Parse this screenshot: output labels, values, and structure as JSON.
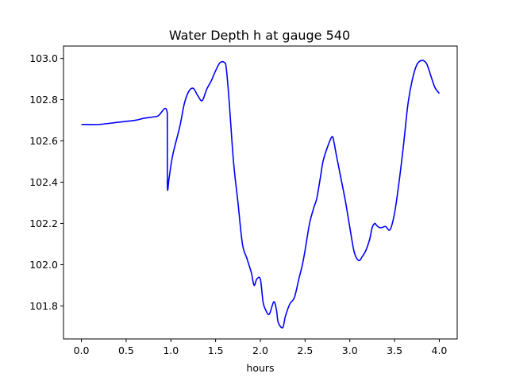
{
  "chart_data": {
    "type": "line",
    "title": "Water Depth h at gauge 540",
    "xlabel": "hours",
    "ylabel": "",
    "xlim": [
      -0.2,
      4.2
    ],
    "ylim": [
      101.64,
      103.06
    ],
    "xticks": [
      0.0,
      0.5,
      1.0,
      1.5,
      2.0,
      2.5,
      3.0,
      3.5,
      4.0
    ],
    "xtick_labels": [
      "0.0",
      "0.5",
      "1.0",
      "1.5",
      "2.0",
      "2.5",
      "3.0",
      "3.5",
      "4.0"
    ],
    "yticks": [
      101.8,
      102.0,
      102.2,
      102.4,
      102.6,
      102.8,
      103.0
    ],
    "ytick_labels": [
      "101.8",
      "102.0",
      "102.2",
      "102.4",
      "102.6",
      "102.8",
      "103.0"
    ],
    "grid": false,
    "line_color": "#0000ff",
    "series": [
      {
        "x": [
          0.0,
          0.2,
          0.4,
          0.6,
          0.7,
          0.85,
          0.96,
          0.961,
          0.98,
          1.02,
          1.1,
          1.15,
          1.2,
          1.25,
          1.3,
          1.35,
          1.4,
          1.45,
          1.5,
          1.55,
          1.6,
          1.62,
          1.65,
          1.7,
          1.75,
          1.8,
          1.85,
          1.9,
          1.93,
          1.96,
          2.0,
          2.03,
          2.06,
          2.1,
          2.15,
          2.18,
          2.2,
          2.25,
          2.28,
          2.33,
          2.38,
          2.43,
          2.47,
          2.5,
          2.55,
          2.6,
          2.63,
          2.67,
          2.7,
          2.75,
          2.8,
          2.82,
          2.85,
          2.9,
          2.95,
          3.0,
          3.05,
          3.1,
          3.14,
          3.18,
          3.22,
          3.25,
          3.28,
          3.3,
          3.33,
          3.36,
          3.4,
          3.45,
          3.5,
          3.55,
          3.6,
          3.65,
          3.7,
          3.75,
          3.8,
          3.85,
          3.88,
          3.91,
          3.95,
          4.0
        ],
        "y": [
          102.68,
          102.68,
          102.69,
          102.7,
          102.71,
          102.72,
          102.735,
          102.38,
          102.42,
          102.53,
          102.67,
          102.78,
          102.84,
          102.855,
          102.82,
          102.795,
          102.85,
          102.89,
          102.94,
          102.98,
          102.98,
          102.95,
          102.8,
          102.5,
          102.3,
          102.1,
          102.03,
          101.96,
          101.9,
          101.93,
          101.93,
          101.82,
          101.78,
          101.76,
          101.82,
          101.78,
          101.72,
          101.695,
          101.75,
          101.81,
          101.84,
          101.93,
          102.0,
          102.07,
          102.2,
          102.28,
          102.32,
          102.42,
          102.5,
          102.57,
          102.62,
          102.6,
          102.53,
          102.42,
          102.31,
          102.18,
          102.06,
          102.02,
          102.04,
          102.07,
          102.12,
          102.18,
          102.2,
          102.19,
          102.18,
          102.18,
          102.185,
          102.17,
          102.25,
          102.4,
          102.58,
          102.78,
          102.9,
          102.97,
          102.99,
          102.98,
          102.95,
          102.91,
          102.86,
          102.83
        ]
      }
    ]
  }
}
